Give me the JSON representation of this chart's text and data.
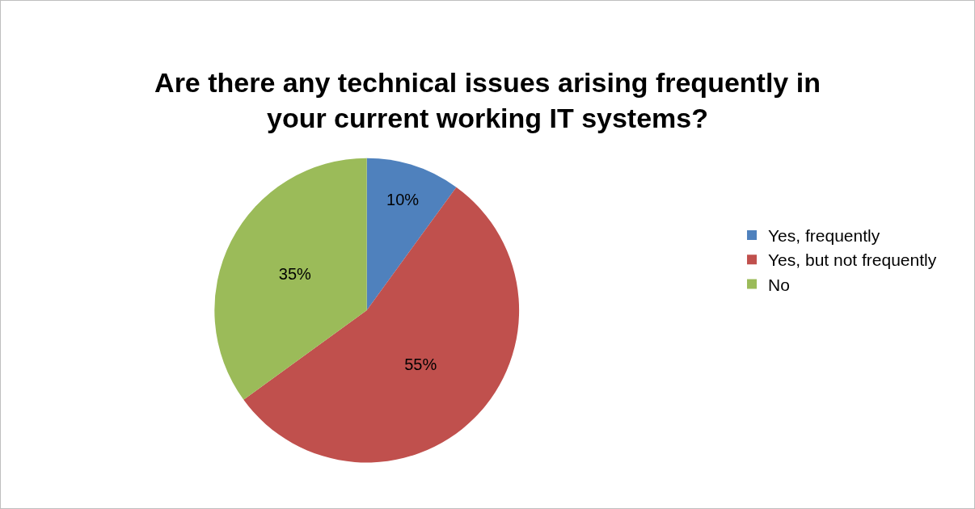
{
  "chart_data": {
    "type": "pie",
    "title": "Are there any technical issues arising frequently in\nyour current working IT systems?",
    "categories": [
      "Yes, frequently",
      "Yes, but not frequently",
      "No"
    ],
    "values": [
      10,
      55,
      35
    ],
    "colors": [
      "#4f81bd",
      "#c0504d",
      "#9bbb59"
    ],
    "value_labels": [
      "10%",
      "55%",
      "35%"
    ],
    "legend": "right"
  }
}
